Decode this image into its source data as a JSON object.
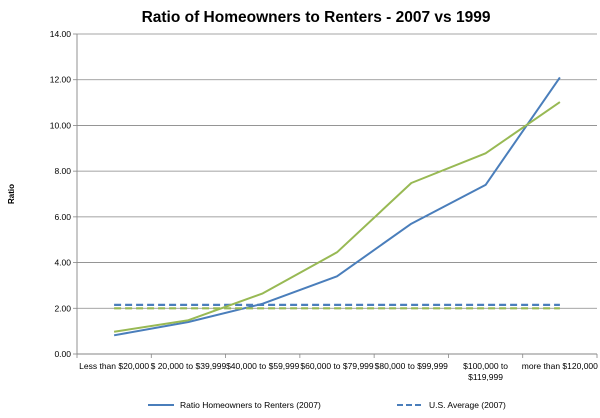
{
  "chart_data": {
    "type": "line",
    "title": "Ratio of Homeowners to Renters - 2007 vs 1999",
    "xlabel": "",
    "ylabel": "Ratio",
    "ylim": [
      0,
      14
    ],
    "yticks": [
      "0.00",
      "2.00",
      "4.00",
      "6.00",
      "8.00",
      "10.00",
      "12.00",
      "14.00"
    ],
    "categories": [
      [
        "Less than $20,000"
      ],
      [
        "$ 20,000 to $39,999"
      ],
      [
        "$40,000 to $59,999"
      ],
      [
        "$60,000 to $79,999"
      ],
      [
        "$80,000 to $99,999"
      ],
      [
        "$100,000 to",
        "$119,999"
      ],
      [
        "more than $120,000"
      ]
    ],
    "grid": "horizontal",
    "legend_position": "bottom",
    "series": [
      {
        "name": "Ratio Homeowners to Renters (2007)",
        "style": "solid",
        "color": "#4a7ebb",
        "values": [
          0.82,
          1.4,
          2.2,
          3.4,
          5.7,
          7.4,
          12.1
        ]
      },
      {
        "name": "U.S. Average (2007)",
        "style": "dashed",
        "color": "#4a7ebb",
        "values": [
          2.15,
          2.15,
          2.15,
          2.15,
          2.15,
          2.15,
          2.15
        ]
      },
      {
        "style": "solid",
        "color": "#98b954",
        "values": [
          0.97,
          1.48,
          2.65,
          4.45,
          7.48,
          8.78,
          11.02
        ]
      },
      {
        "style": "dashed",
        "color": "#98b954",
        "values": [
          2.0,
          2.0,
          2.0,
          2.0,
          2.0,
          2.0,
          2.0
        ]
      }
    ]
  }
}
